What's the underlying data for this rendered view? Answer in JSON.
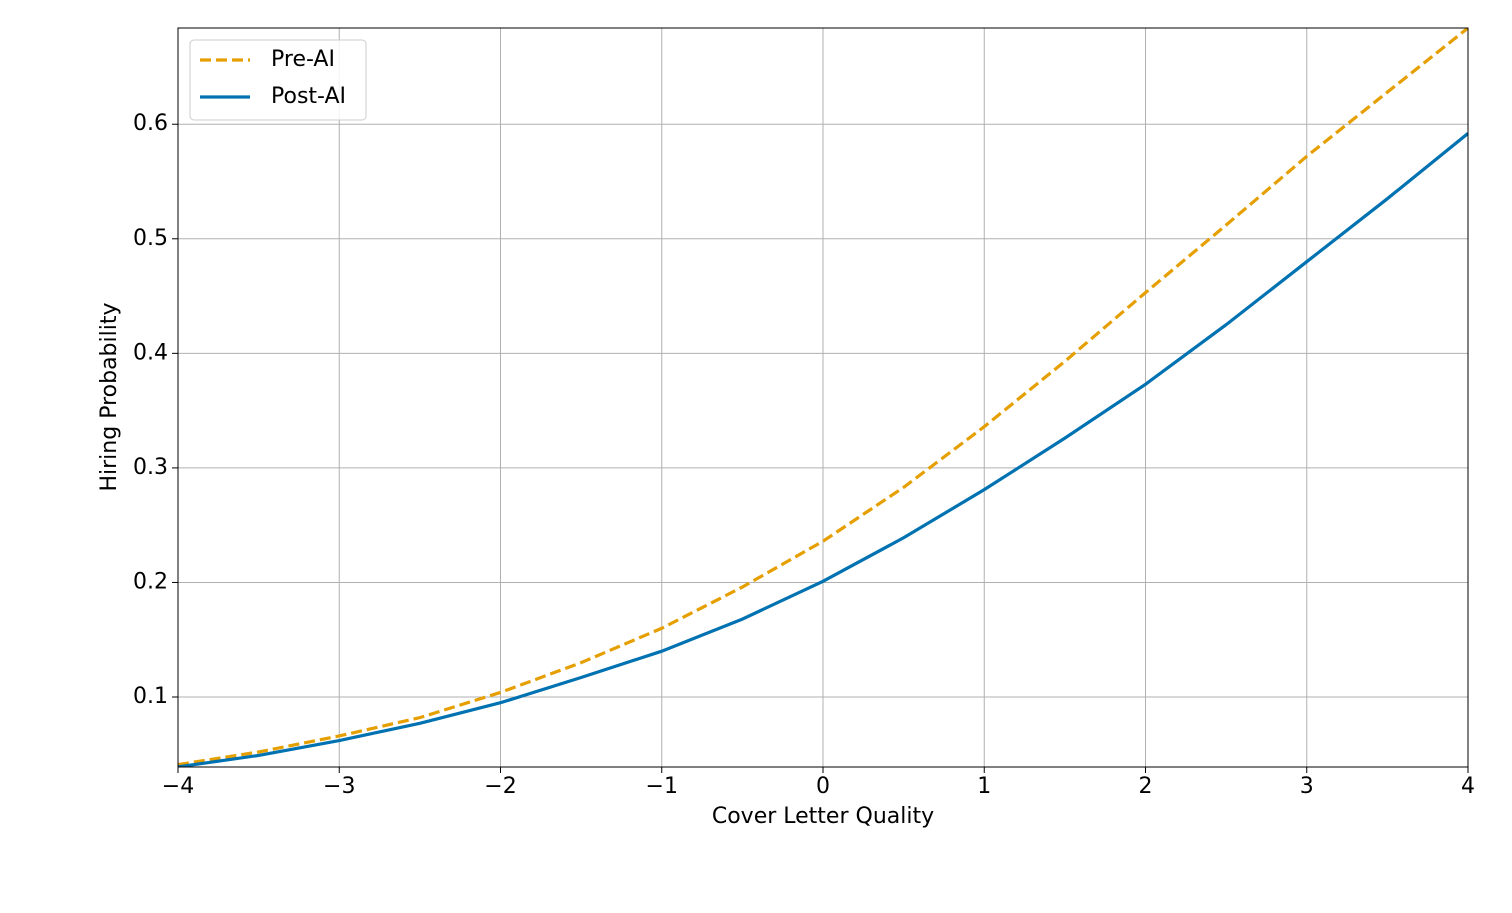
{
  "chart_data": {
    "type": "line",
    "xlabel": "Cover Letter Quality",
    "ylabel": "Hiring Probability",
    "x": [
      -4,
      -3.5,
      -3,
      -2.5,
      -2,
      -1.5,
      -1,
      -0.5,
      0,
      0.5,
      1,
      1.5,
      2,
      2.5,
      3,
      3.5,
      4
    ],
    "series": [
      {
        "name": "Pre-AI",
        "color": "#e69f00",
        "linestyle": "dashed",
        "values": [
          0.041,
          0.052,
          0.066,
          0.082,
          0.104,
          0.13,
          0.16,
          0.196,
          0.236,
          0.283,
          0.336,
          0.393,
          0.453,
          0.512,
          0.572,
          0.628,
          0.684
        ]
      },
      {
        "name": "Post-AI",
        "color": "#0072b2",
        "linestyle": "solid",
        "values": [
          0.039,
          0.049,
          0.062,
          0.077,
          0.095,
          0.117,
          0.14,
          0.168,
          0.201,
          0.239,
          0.281,
          0.326,
          0.373,
          0.425,
          0.48,
          0.535,
          0.592
        ]
      }
    ],
    "xlim": [
      -4,
      4
    ],
    "ylim": [
      0.0389,
      0.684
    ],
    "xticks": [
      {
        "value": -4,
        "label": "−4"
      },
      {
        "value": -3,
        "label": "−3"
      },
      {
        "value": -2,
        "label": "−2"
      },
      {
        "value": -1,
        "label": "−1"
      },
      0,
      1,
      2,
      3,
      4
    ],
    "yticks": [
      0.1,
      0.2,
      0.3,
      0.4,
      0.5,
      0.6
    ],
    "grid": true,
    "legend": "upper-left"
  }
}
